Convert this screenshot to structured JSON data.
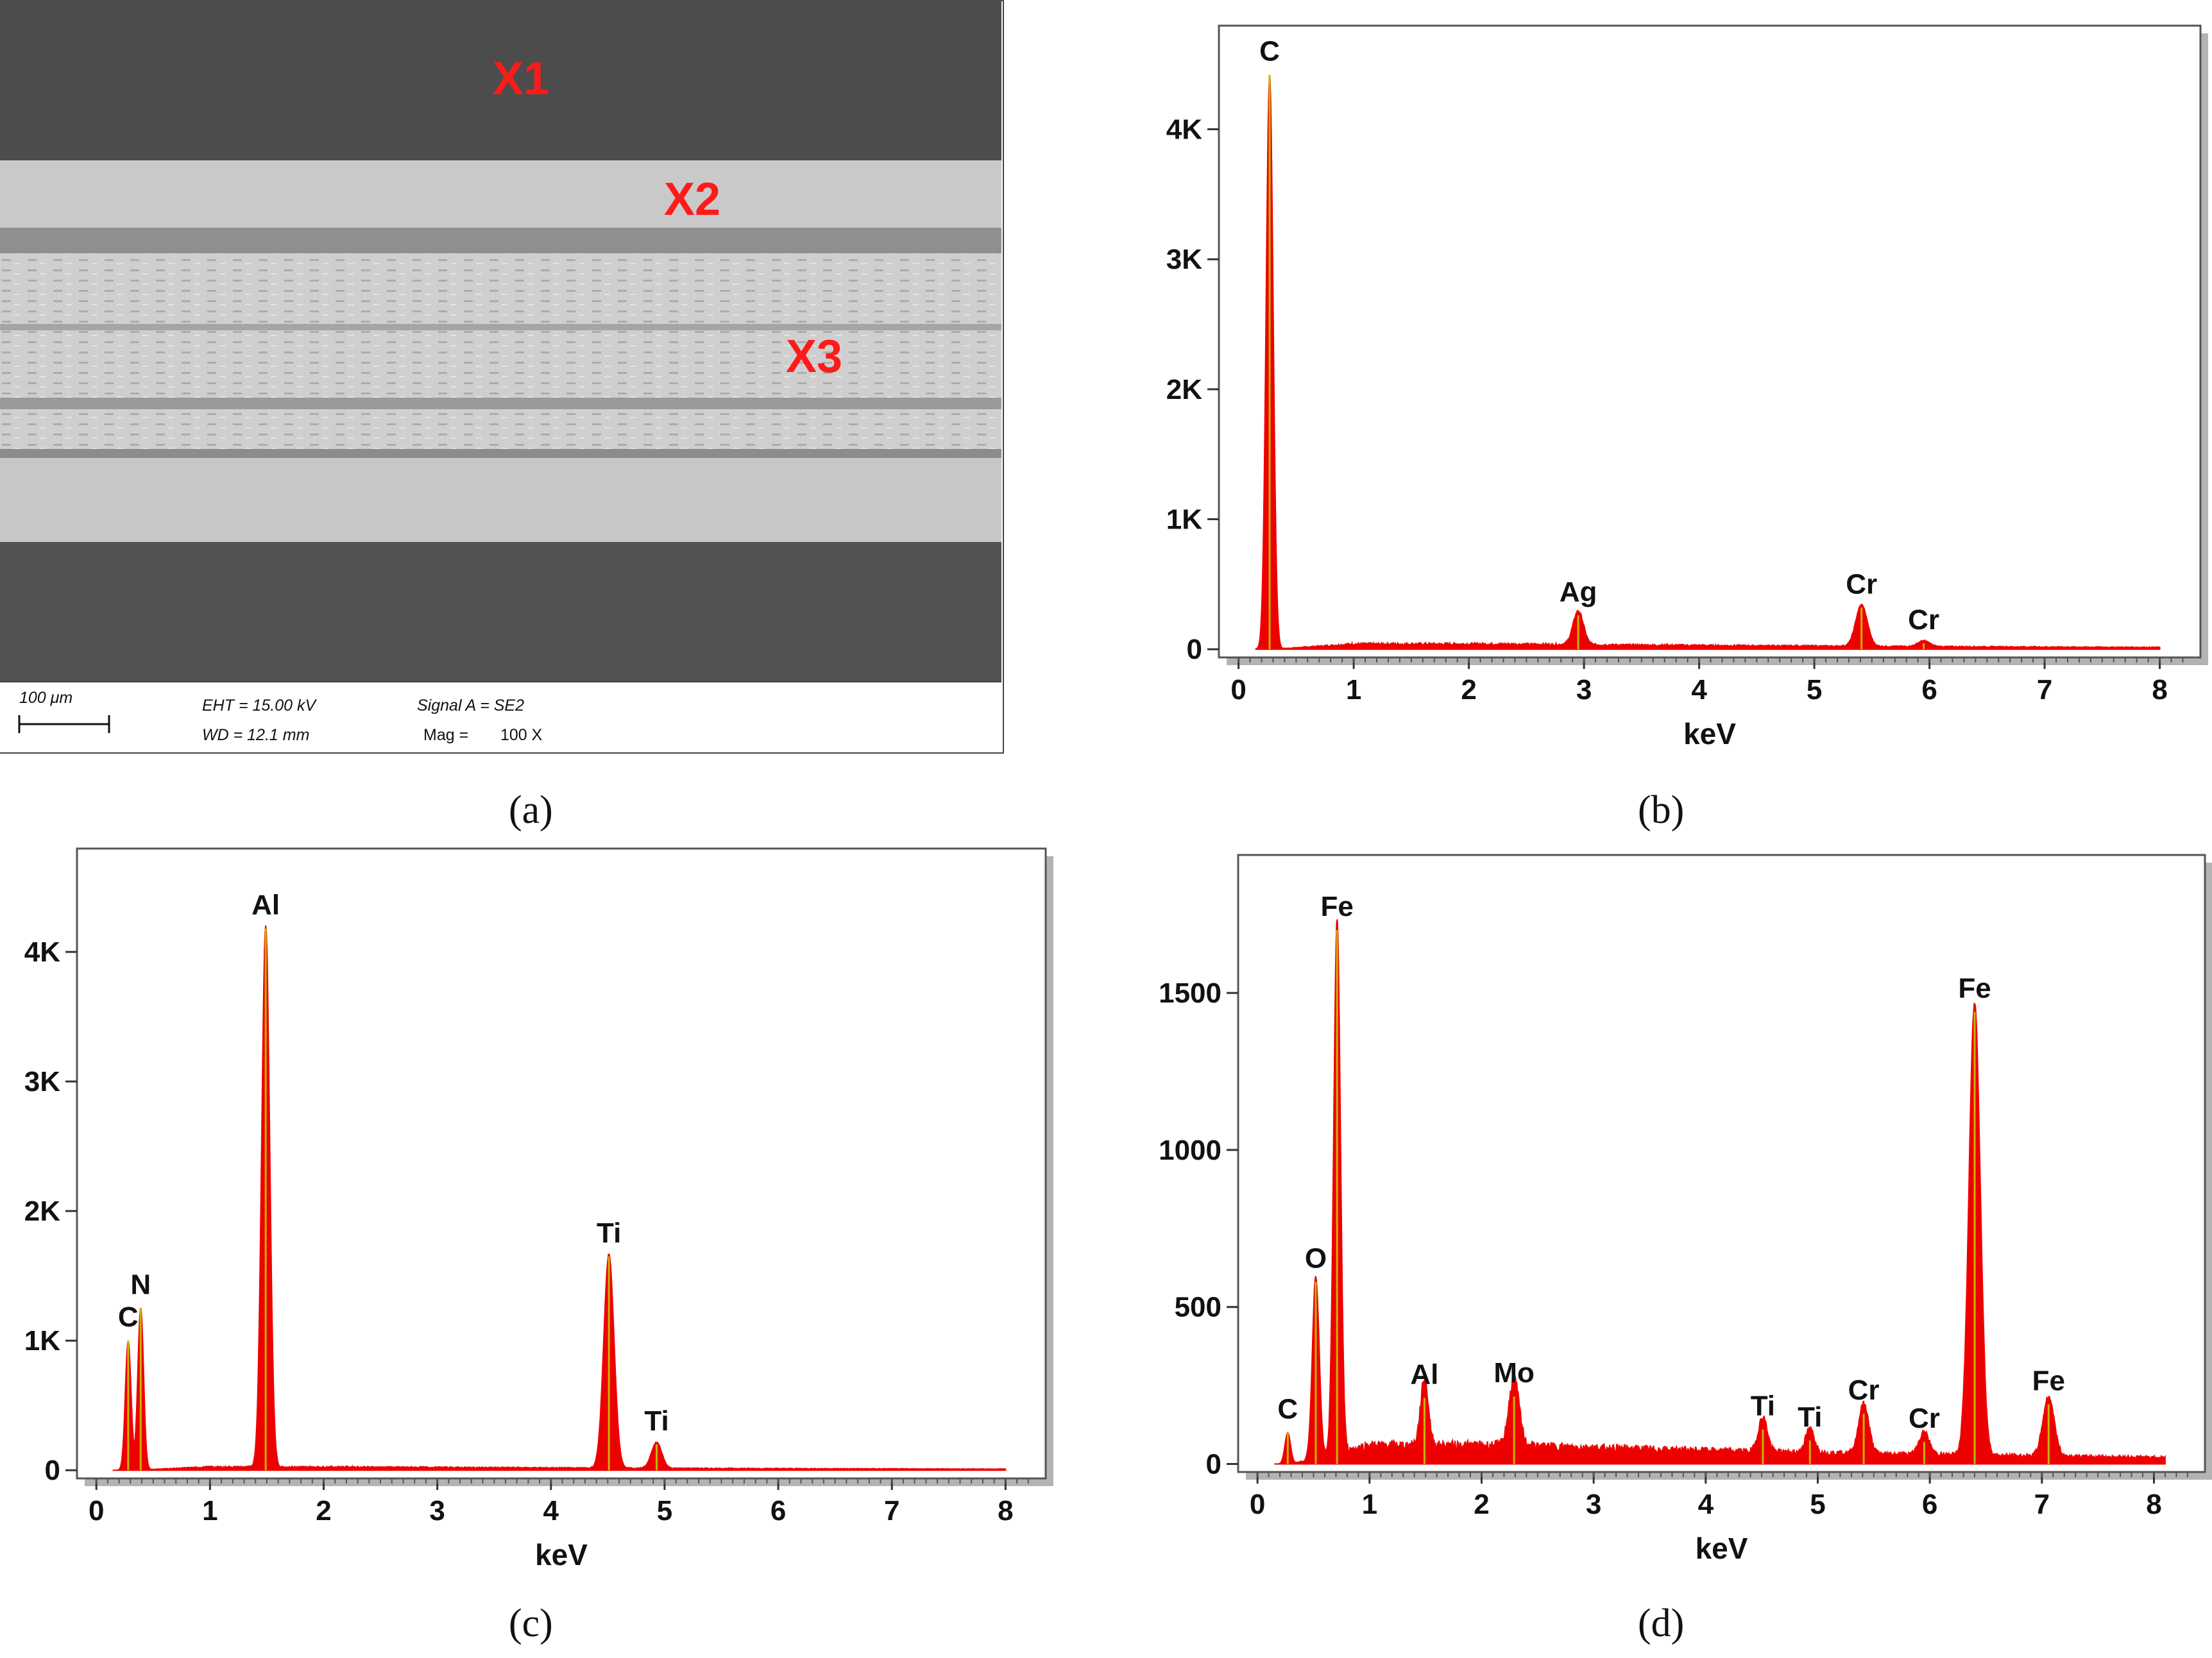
{
  "sem_panel": {
    "markers": [
      "X1",
      "X2",
      "X3"
    ],
    "scale_bar": "100 μm",
    "eht": "EHT = 15.00 kV",
    "wd": "WD = 12.1 mm",
    "signal": "Signal A = SE2",
    "mag_label": "Mag =",
    "mag_value": "100 X"
  },
  "captions": [
    "(a)",
    "(b)",
    "(c)",
    "(d)"
  ],
  "colors": {
    "spectrum": "#ee0000",
    "peak_line": "#c8b400",
    "plot_shadow": "#b3b3b3",
    "marker": "#ff1a1a"
  },
  "chart_data": [
    {
      "panel": "(b)",
      "type": "area",
      "xlabel": "keV",
      "ylabel": "",
      "xlim": [
        0,
        8.2
      ],
      "ylim": [
        0,
        4700
      ],
      "xticks": [
        "0",
        "1",
        "2",
        "3",
        "4",
        "5",
        "6",
        "7",
        "8"
      ],
      "yticks": [
        {
          "value": 0,
          "label": "0"
        },
        {
          "value": 1000,
          "label": "1K"
        },
        {
          "value": 2000,
          "label": "2K"
        },
        {
          "value": 3000,
          "label": "3K"
        },
        {
          "value": 4000,
          "label": "4K"
        }
      ],
      "background": 40,
      "peaks": [
        {
          "label": "C",
          "x": 0.27,
          "y": 4420,
          "w": 0.03
        },
        {
          "label": "Ag",
          "x": 2.95,
          "y": 260,
          "w": 0.045
        },
        {
          "label": "Cr",
          "x": 5.41,
          "y": 320,
          "w": 0.05
        },
        {
          "label": "Cr",
          "x": 5.95,
          "y": 45,
          "w": 0.05
        }
      ]
    },
    {
      "panel": "(c)",
      "type": "area",
      "xlabel": "keV",
      "ylabel": "",
      "xlim": [
        0,
        8.2
      ],
      "ylim": [
        0,
        4700
      ],
      "xticks": [
        "0",
        "1",
        "2",
        "3",
        "4",
        "5",
        "6",
        "7",
        "8"
      ],
      "yticks": [
        {
          "value": 0,
          "label": "0"
        },
        {
          "value": 1000,
          "label": "1K"
        },
        {
          "value": 2000,
          "label": "2K"
        },
        {
          "value": 3000,
          "label": "3K"
        },
        {
          "value": 4000,
          "label": "4K"
        }
      ],
      "background": 25,
      "peaks": [
        {
          "label": "C",
          "x": 0.28,
          "y": 1000,
          "w": 0.025
        },
        {
          "label": "N",
          "x": 0.39,
          "y": 1250,
          "w": 0.025
        },
        {
          "label": "Al",
          "x": 1.49,
          "y": 4180,
          "w": 0.035
        },
        {
          "label": "Ti",
          "x": 4.51,
          "y": 1650,
          "w": 0.045
        },
        {
          "label": "Ti",
          "x": 4.93,
          "y": 200,
          "w": 0.045
        }
      ]
    },
    {
      "panel": "(d)",
      "type": "area",
      "xlabel": "keV",
      "ylabel": "",
      "xlim": [
        0,
        8.3
      ],
      "ylim": [
        0,
        1900
      ],
      "xticks": [
        "0",
        "1",
        "2",
        "3",
        "4",
        "5",
        "6",
        "7",
        "8"
      ],
      "yticks": [
        {
          "value": 0,
          "label": "0"
        },
        {
          "value": 500,
          "label": "500"
        },
        {
          "value": 1000,
          "label": "1000"
        },
        {
          "value": 1500,
          "label": "1500"
        }
      ],
      "background": 60,
      "peaks": [
        {
          "label": "C",
          "x": 0.27,
          "y": 100,
          "w": 0.025
        },
        {
          "label": "O",
          "x": 0.52,
          "y": 580,
          "w": 0.03
        },
        {
          "label": "Fe",
          "x": 0.71,
          "y": 1700,
          "w": 0.03
        },
        {
          "label": "Al",
          "x": 1.49,
          "y": 210,
          "w": 0.035
        },
        {
          "label": "Mo",
          "x": 2.29,
          "y": 215,
          "w": 0.045
        },
        {
          "label": "Ti",
          "x": 4.51,
          "y": 110,
          "w": 0.04
        },
        {
          "label": "Ti",
          "x": 4.93,
          "y": 75,
          "w": 0.04
        },
        {
          "label": "Cr",
          "x": 5.41,
          "y": 160,
          "w": 0.045
        },
        {
          "label": "Cr",
          "x": 5.95,
          "y": 70,
          "w": 0.045
        },
        {
          "label": "Fe",
          "x": 6.4,
          "y": 1440,
          "w": 0.05
        },
        {
          "label": "Fe",
          "x": 7.06,
          "y": 190,
          "w": 0.05
        }
      ]
    }
  ]
}
